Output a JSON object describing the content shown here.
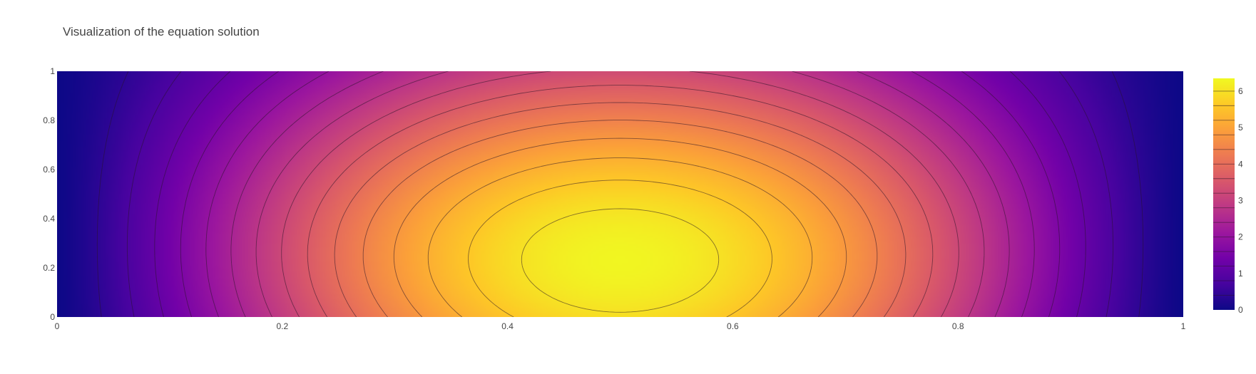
{
  "chart_data": {
    "type": "contour",
    "title": "Visualization of the equation solution",
    "xlabel": "",
    "ylabel": "",
    "xlim": [
      0,
      1
    ],
    "ylim": [
      0,
      1
    ],
    "x_ticks": [
      "0",
      "0.2",
      "0.4",
      "0.6",
      "0.8",
      "1"
    ],
    "x_tick_values": [
      0,
      0.2,
      0.4,
      0.6,
      0.8,
      1
    ],
    "y_ticks": [
      "0",
      "0.2",
      "0.4",
      "0.6",
      "0.8",
      "1"
    ],
    "y_tick_values": [
      0,
      0.2,
      0.4,
      0.6,
      0.8,
      1
    ],
    "z_range": [
      0,
      6.35
    ],
    "peak": {
      "x": 0.5,
      "y": 0.23,
      "value": 6.3
    },
    "contour_levels": [
      0.4,
      0.8,
      1.2,
      1.6,
      2.0,
      2.4,
      2.8,
      3.2,
      3.6,
      4.0,
      4.4,
      4.8,
      5.2,
      5.6,
      6.0
    ],
    "colorbar": {
      "ticks": [
        "0",
        "1",
        "2",
        "3",
        "4",
        "5",
        "6"
      ],
      "tick_values": [
        0,
        1,
        2,
        3,
        4,
        5,
        6
      ]
    },
    "colorscale": "plasma",
    "colorscale_stops": [
      "#0d0887",
      "#46039f",
      "#7201a8",
      "#9c179e",
      "#bd3786",
      "#d8576b",
      "#ed7953",
      "#fb9f3a",
      "#fdca26",
      "#f0f921"
    ],
    "grid": false,
    "legend": "none"
  }
}
